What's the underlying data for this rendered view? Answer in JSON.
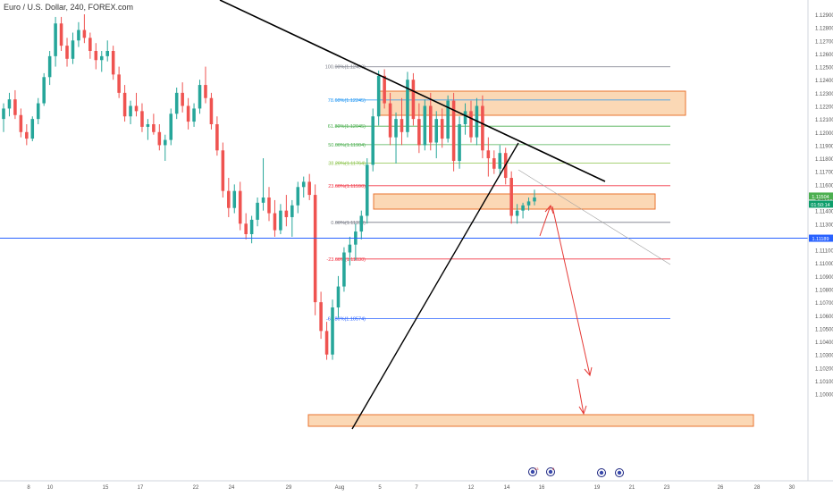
{
  "header": {
    "symbol_title": "Euro / U.S. Dollar, 240, FOREX.com"
  },
  "colors": {
    "up": "#26a69a",
    "down": "#ef5350",
    "trendline": "#000000",
    "zone_fill": "#f9cb9c",
    "zone_border": "#e8732f",
    "horizontal_line": "#2962ff",
    "arrow": "#e53935",
    "price_tag_bg": "#4caf50",
    "timer_bg": "#0d9e6b",
    "level_tag_bg": "#2962ff"
  },
  "price_axis": {
    "ticks": [
      "1.12900",
      "1.12800",
      "1.12700",
      "1.12600",
      "1.12500",
      "1.12400",
      "1.12300",
      "1.12200",
      "1.12100",
      "1.12000",
      "1.11900",
      "1.11800",
      "1.11700",
      "1.11600",
      "1.11500",
      "1.11400",
      "1.11300",
      "1.11200",
      "1.11100",
      "1.11000",
      "1.10900",
      "1.10800",
      "1.10700",
      "1.10600",
      "1.10500",
      "1.10400",
      "1.10300",
      "1.10200",
      "1.10100",
      "1.10000"
    ],
    "current_price": "1.11504",
    "countdown": "01:50:14",
    "level_tag": "1.11189"
  },
  "time_axis": {
    "labels": [
      "8",
      "10",
      "15",
      "17",
      "22",
      "24",
      "29",
      "Aug",
      "5",
      "7",
      "12",
      "14",
      "16",
      "19",
      "21",
      "23",
      "26",
      "28",
      "30"
    ]
  },
  "fib_levels": [
    {
      "label": "100.00%(1.12499)",
      "price": 1.12499,
      "color": "#787b86"
    },
    {
      "label": "78.60%(1.12245)",
      "price": 1.12245,
      "color": "#2196f3"
    },
    {
      "label": "61.80%(1.12045)",
      "price": 1.12045,
      "color": "#4caf50"
    },
    {
      "label": "50.00%(1.11904)",
      "price": 1.11904,
      "color": "#4caf50"
    },
    {
      "label": "38.20%(1.11764)",
      "price": 1.11764,
      "color": "#8bc34a"
    },
    {
      "label": "23.60%(1.11590)",
      "price": 1.1159,
      "color": "#f23645"
    },
    {
      "label": "0.00%(1.11310)",
      "price": 1.1131,
      "color": "#787b86"
    },
    {
      "label": "-23.60%(1.11030)",
      "price": 1.1103,
      "color": "#f23645"
    },
    {
      "label": "-61.80%(1.10574)",
      "price": 1.10574,
      "color": "#2962ff"
    }
  ],
  "events": [
    "13",
    "5"
  ],
  "chart_data": {
    "type": "candlestick",
    "title": "Euro / U.S. Dollar, 240, FOREX.com",
    "xlabel": "",
    "ylabel": "",
    "ylim": [
      1.0995,
      1.1295
    ],
    "current_price": 1.11504,
    "horizontal_level": 1.11189,
    "candles": [
      {
        "o": 1.121,
        "h": 1.1222,
        "l": 1.12,
        "c": 1.1218
      },
      {
        "o": 1.1218,
        "h": 1.123,
        "l": 1.1212,
        "c": 1.1225
      },
      {
        "o": 1.1225,
        "h": 1.1232,
        "l": 1.121,
        "c": 1.1213
      },
      {
        "o": 1.1213,
        "h": 1.1218,
        "l": 1.1196,
        "c": 1.12
      },
      {
        "o": 1.12,
        "h": 1.1206,
        "l": 1.119,
        "c": 1.1195
      },
      {
        "o": 1.1195,
        "h": 1.1212,
        "l": 1.1193,
        "c": 1.121
      },
      {
        "o": 1.121,
        "h": 1.1226,
        "l": 1.1206,
        "c": 1.1222
      },
      {
        "o": 1.1222,
        "h": 1.1245,
        "l": 1.122,
        "c": 1.1242
      },
      {
        "o": 1.1242,
        "h": 1.1262,
        "l": 1.1236,
        "c": 1.1258
      },
      {
        "o": 1.1258,
        "h": 1.1288,
        "l": 1.125,
        "c": 1.1283
      },
      {
        "o": 1.1283,
        "h": 1.1288,
        "l": 1.1262,
        "c": 1.1266
      },
      {
        "o": 1.1266,
        "h": 1.1272,
        "l": 1.125,
        "c": 1.1256
      },
      {
        "o": 1.1256,
        "h": 1.1276,
        "l": 1.1252,
        "c": 1.127
      },
      {
        "o": 1.127,
        "h": 1.1284,
        "l": 1.1265,
        "c": 1.1278
      },
      {
        "o": 1.1278,
        "h": 1.129,
        "l": 1.1268,
        "c": 1.1272
      },
      {
        "o": 1.1272,
        "h": 1.1276,
        "l": 1.1256,
        "c": 1.1262
      },
      {
        "o": 1.1262,
        "h": 1.1268,
        "l": 1.1248,
        "c": 1.1255
      },
      {
        "o": 1.1255,
        "h": 1.1262,
        "l": 1.1246,
        "c": 1.1258
      },
      {
        "o": 1.1258,
        "h": 1.127,
        "l": 1.1254,
        "c": 1.1262
      },
      {
        "o": 1.1262,
        "h": 1.1266,
        "l": 1.124,
        "c": 1.1244
      },
      {
        "o": 1.1244,
        "h": 1.125,
        "l": 1.1226,
        "c": 1.123
      },
      {
        "o": 1.123,
        "h": 1.1236,
        "l": 1.1208,
        "c": 1.1212
      },
      {
        "o": 1.1212,
        "h": 1.1224,
        "l": 1.1206,
        "c": 1.122
      },
      {
        "o": 1.122,
        "h": 1.123,
        "l": 1.1212,
        "c": 1.1216
      },
      {
        "o": 1.1216,
        "h": 1.1222,
        "l": 1.12,
        "c": 1.1204
      },
      {
        "o": 1.1204,
        "h": 1.121,
        "l": 1.1194,
        "c": 1.1206
      },
      {
        "o": 1.1206,
        "h": 1.1214,
        "l": 1.1198,
        "c": 1.12
      },
      {
        "o": 1.12,
        "h": 1.1206,
        "l": 1.1186,
        "c": 1.119
      },
      {
        "o": 1.119,
        "h": 1.1198,
        "l": 1.1178,
        "c": 1.1194
      },
      {
        "o": 1.1194,
        "h": 1.1218,
        "l": 1.119,
        "c": 1.1214
      },
      {
        "o": 1.1214,
        "h": 1.1234,
        "l": 1.121,
        "c": 1.123
      },
      {
        "o": 1.123,
        "h": 1.1238,
        "l": 1.1215,
        "c": 1.122
      },
      {
        "o": 1.122,
        "h": 1.1226,
        "l": 1.1202,
        "c": 1.1208
      },
      {
        "o": 1.1208,
        "h": 1.1222,
        "l": 1.1204,
        "c": 1.1218
      },
      {
        "o": 1.1218,
        "h": 1.124,
        "l": 1.1214,
        "c": 1.1236
      },
      {
        "o": 1.1236,
        "h": 1.125,
        "l": 1.1222,
        "c": 1.1226
      },
      {
        "o": 1.1226,
        "h": 1.123,
        "l": 1.1202,
        "c": 1.1206
      },
      {
        "o": 1.1206,
        "h": 1.1212,
        "l": 1.1182,
        "c": 1.1186
      },
      {
        "o": 1.1186,
        "h": 1.1192,
        "l": 1.115,
        "c": 1.1155
      },
      {
        "o": 1.1155,
        "h": 1.1165,
        "l": 1.1135,
        "c": 1.1142
      },
      {
        "o": 1.1142,
        "h": 1.116,
        "l": 1.1138,
        "c": 1.1155
      },
      {
        "o": 1.1155,
        "h": 1.1162,
        "l": 1.1125,
        "c": 1.113
      },
      {
        "o": 1.113,
        "h": 1.1138,
        "l": 1.1118,
        "c": 1.1122
      },
      {
        "o": 1.1122,
        "h": 1.1136,
        "l": 1.1115,
        "c": 1.1133
      },
      {
        "o": 1.1133,
        "h": 1.115,
        "l": 1.1128,
        "c": 1.1146
      },
      {
        "o": 1.1146,
        "h": 1.118,
        "l": 1.114,
        "c": 1.115
      },
      {
        "o": 1.115,
        "h": 1.1158,
        "l": 1.1132,
        "c": 1.1138
      },
      {
        "o": 1.1138,
        "h": 1.1148,
        "l": 1.112,
        "c": 1.1125
      },
      {
        "o": 1.1125,
        "h": 1.1145,
        "l": 1.1122,
        "c": 1.114
      },
      {
        "o": 1.114,
        "h": 1.1152,
        "l": 1.1128,
        "c": 1.1135
      },
      {
        "o": 1.1135,
        "h": 1.1148,
        "l": 1.112,
        "c": 1.1144
      },
      {
        "o": 1.1144,
        "h": 1.1162,
        "l": 1.1138,
        "c": 1.1158
      },
      {
        "o": 1.1158,
        "h": 1.1166,
        "l": 1.115,
        "c": 1.1162
      },
      {
        "o": 1.1162,
        "h": 1.1168,
        "l": 1.1148,
        "c": 1.1152
      },
      {
        "o": 1.1152,
        "h": 1.116,
        "l": 1.106,
        "c": 1.107
      },
      {
        "o": 1.107,
        "h": 1.1078,
        "l": 1.1042,
        "c": 1.1048
      },
      {
        "o": 1.1048,
        "h": 1.1055,
        "l": 1.1026,
        "c": 1.103
      },
      {
        "o": 1.103,
        "h": 1.1072,
        "l": 1.1026,
        "c": 1.1066
      },
      {
        "o": 1.1066,
        "h": 1.109,
        "l": 1.1058,
        "c": 1.1082
      },
      {
        "o": 1.1082,
        "h": 1.1112,
        "l": 1.1078,
        "c": 1.1108
      },
      {
        "o": 1.1108,
        "h": 1.112,
        "l": 1.1098,
        "c": 1.1114
      },
      {
        "o": 1.1114,
        "h": 1.113,
        "l": 1.1102,
        "c": 1.1124
      },
      {
        "o": 1.1124,
        "h": 1.114,
        "l": 1.1118,
        "c": 1.1136
      },
      {
        "o": 1.1136,
        "h": 1.118,
        "l": 1.113,
        "c": 1.1175
      },
      {
        "o": 1.1175,
        "h": 1.1218,
        "l": 1.117,
        "c": 1.1212
      },
      {
        "o": 1.1212,
        "h": 1.1247,
        "l": 1.1205,
        "c": 1.1243
      },
      {
        "o": 1.1243,
        "h": 1.1248,
        "l": 1.1218,
        "c": 1.1222
      },
      {
        "o": 1.1222,
        "h": 1.123,
        "l": 1.119,
        "c": 1.1196
      },
      {
        "o": 1.1196,
        "h": 1.1215,
        "l": 1.1176,
        "c": 1.121
      },
      {
        "o": 1.121,
        "h": 1.1226,
        "l": 1.119,
        "c": 1.12
      },
      {
        "o": 1.12,
        "h": 1.1246,
        "l": 1.1196,
        "c": 1.124
      },
      {
        "o": 1.124,
        "h": 1.1245,
        "l": 1.1205,
        "c": 1.121
      },
      {
        "o": 1.121,
        "h": 1.1222,
        "l": 1.1184,
        "c": 1.119
      },
      {
        "o": 1.119,
        "h": 1.1225,
        "l": 1.1186,
        "c": 1.122
      },
      {
        "o": 1.122,
        "h": 1.123,
        "l": 1.1186,
        "c": 1.1192
      },
      {
        "o": 1.1192,
        "h": 1.1216,
        "l": 1.118,
        "c": 1.121
      },
      {
        "o": 1.121,
        "h": 1.1218,
        "l": 1.1188,
        "c": 1.1195
      },
      {
        "o": 1.1195,
        "h": 1.1228,
        "l": 1.1192,
        "c": 1.1224
      },
      {
        "o": 1.1224,
        "h": 1.123,
        "l": 1.117,
        "c": 1.1178
      },
      {
        "o": 1.1178,
        "h": 1.1212,
        "l": 1.1172,
        "c": 1.1206
      },
      {
        "o": 1.1206,
        "h": 1.1222,
        "l": 1.1198,
        "c": 1.1216
      },
      {
        "o": 1.1216,
        "h": 1.1224,
        "l": 1.1192,
        "c": 1.1196
      },
      {
        "o": 1.1196,
        "h": 1.1226,
        "l": 1.119,
        "c": 1.122
      },
      {
        "o": 1.122,
        "h": 1.1228,
        "l": 1.118,
        "c": 1.1186
      },
      {
        "o": 1.1186,
        "h": 1.1196,
        "l": 1.1166,
        "c": 1.118
      },
      {
        "o": 1.118,
        "h": 1.1186,
        "l": 1.1168,
        "c": 1.1172
      },
      {
        "o": 1.1172,
        "h": 1.119,
        "l": 1.1168,
        "c": 1.1184
      },
      {
        "o": 1.1184,
        "h": 1.1188,
        "l": 1.116,
        "c": 1.1165
      },
      {
        "o": 1.1165,
        "h": 1.117,
        "l": 1.113,
        "c": 1.1136
      },
      {
        "o": 1.1136,
        "h": 1.1145,
        "l": 1.113,
        "c": 1.114
      },
      {
        "o": 1.114,
        "h": 1.1146,
        "l": 1.1134,
        "c": 1.1144
      },
      {
        "o": 1.1144,
        "h": 1.115,
        "l": 1.114,
        "c": 1.1147
      },
      {
        "o": 1.1147,
        "h": 1.1156,
        "l": 1.1144,
        "c": 1.115
      }
    ]
  }
}
